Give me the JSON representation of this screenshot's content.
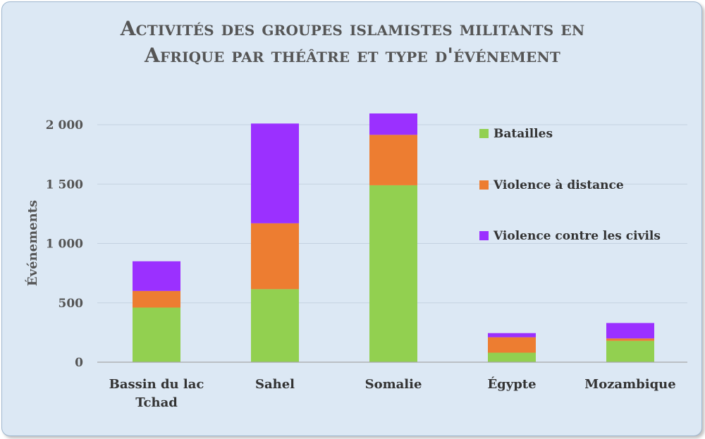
{
  "chart_data": {
    "type": "bar",
    "stacked": true,
    "title_lines": [
      "Activités des groupes islamistes militants en",
      "Afrique par théâtre et type d'événement"
    ],
    "ylabel": "Événements",
    "ylim": [
      0,
      2000
    ],
    "yticks": [
      0,
      500,
      1000,
      1500,
      2000
    ],
    "ytick_labels": [
      "0",
      "500",
      "1 000",
      "1 500",
      "2 000"
    ],
    "grid": true,
    "legend_position": "right",
    "categories": [
      [
        "Bassin du lac",
        "Tchad"
      ],
      [
        "Sahel"
      ],
      [
        "Somalie"
      ],
      [
        "Égypte"
      ],
      [
        "Mozambique"
      ]
    ],
    "series": [
      {
        "name": "Batailles",
        "color": "#92d050",
        "values": [
          460,
          615,
          1490,
          80,
          180
        ]
      },
      {
        "name": "Violence à distance",
        "color": "#ed7d31",
        "values": [
          140,
          555,
          425,
          130,
          20
        ]
      },
      {
        "name": "Violence contre les civils",
        "color": "#9b30ff",
        "values": [
          250,
          840,
          180,
          35,
          130
        ]
      }
    ]
  }
}
